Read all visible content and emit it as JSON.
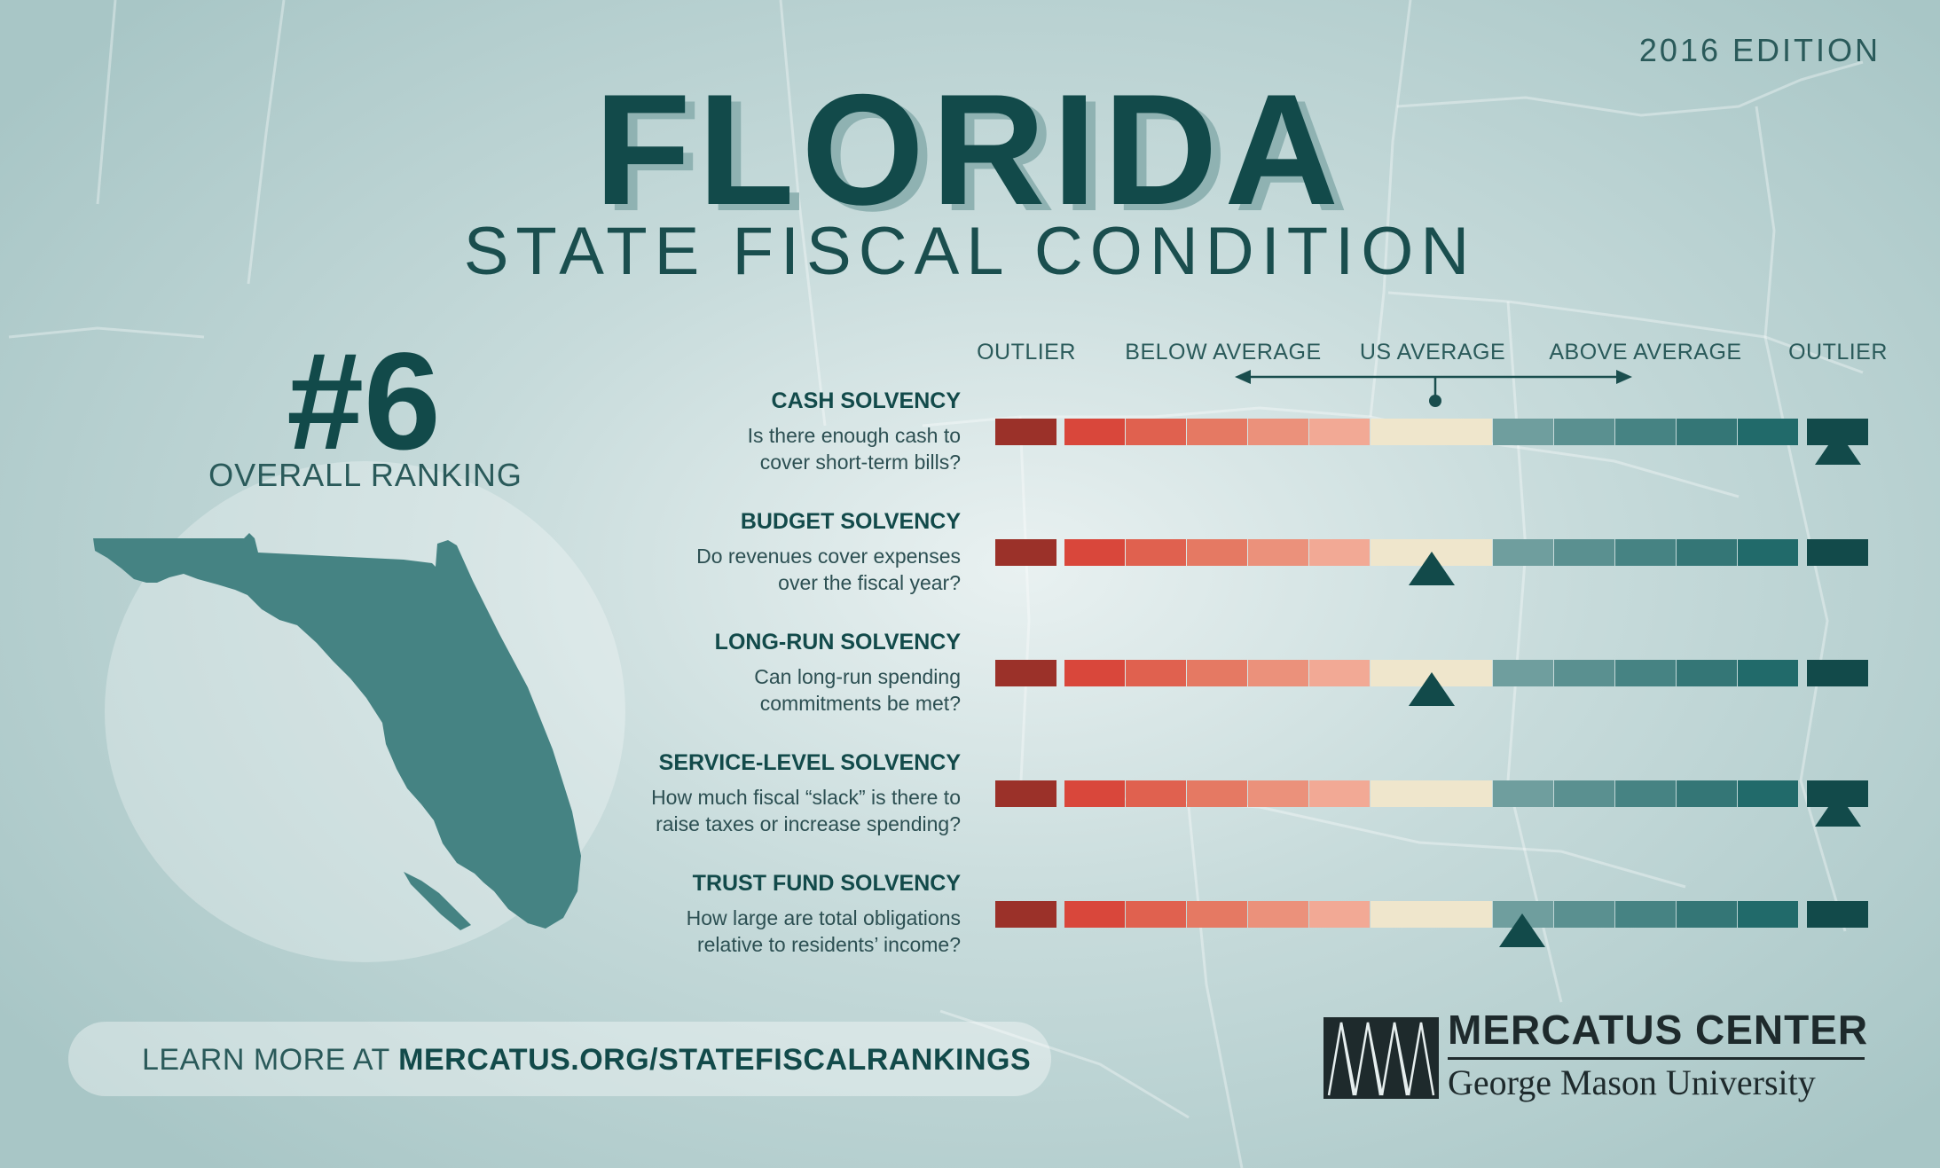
{
  "header": {
    "edition": "2016 EDITION",
    "title": "FLORIDA",
    "subtitle": "STATE FISCAL CONDITION"
  },
  "ranking": {
    "number": "#6",
    "label": "OVERALL RANKING"
  },
  "chart_data": {
    "type": "bar",
    "scale_labels": [
      "OUTLIER",
      "BELOW AVERAGE",
      "US AVERAGE",
      "ABOVE AVERAGE",
      "OUTLIER"
    ],
    "segment_colors": [
      "#9b3129",
      "#d9473b",
      "#e0614f",
      "#e57963",
      "#eb917b",
      "#f2a995",
      "#efe6cc",
      "#6f9e9e",
      "#5a9090",
      "#468383",
      "#347676",
      "#216a6a",
      "#124a4a"
    ],
    "scale_range": [
      0,
      12
    ],
    "categories": [
      {
        "title": "CASH SOLVENCY",
        "question": "Is there enough cash to cover short-term bills?",
        "score": 12
      },
      {
        "title": "BUDGET SOLVENCY",
        "question": "Do revenues cover expenses over the fiscal year?",
        "score": 6
      },
      {
        "title": "LONG-RUN SOLVENCY",
        "question": "Can long-run spending commitments be met?",
        "score": 6
      },
      {
        "title": "SERVICE-LEVEL SOLVENCY",
        "question": "How much fiscal “slack” is there to raise taxes or increase spending?",
        "score": 12
      },
      {
        "title": "TRUST FUND SOLVENCY",
        "question": "How large are total obligations relative to residents’ income?",
        "score": 7.5
      }
    ]
  },
  "footer": {
    "prefix": "LEARN MORE AT ",
    "url": "MERCATUS.ORG/STATEFISCALRANKINGS"
  },
  "logo": {
    "name": "MERCATUS CENTER",
    "subtitle": "George Mason University"
  }
}
